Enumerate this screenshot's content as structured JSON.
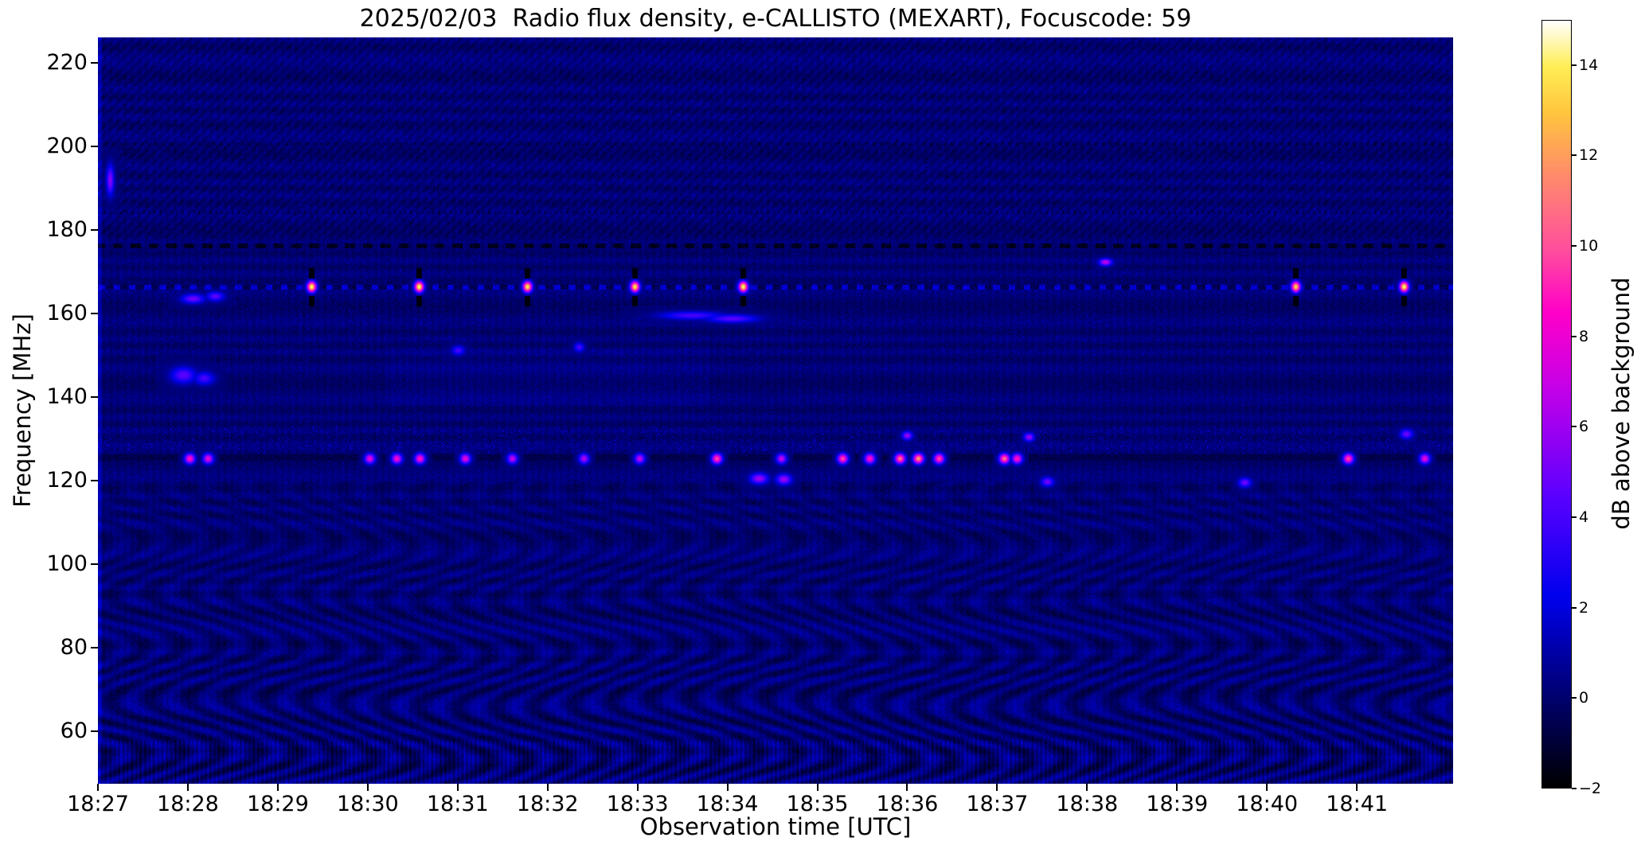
{
  "chart_data": {
    "type": "heatmap",
    "title": "2025/02/03  Radio flux density, e-CALLISTO (MEXART), Focuscode: 59",
    "xlabel": "Observation time [UTC]",
    "ylabel": "Frequency [MHz]",
    "colorbar_label": "dB above background",
    "colormap": "gnuplot2-like (black-blue-magenta-pink-yellow-white)",
    "freq_range": [
      47.5,
      226
    ],
    "time_span_min": 15.07,
    "value_range": [
      -2,
      15
    ],
    "grid": false,
    "yticks": [
      220,
      200,
      180,
      160,
      140,
      120,
      100,
      80,
      60
    ],
    "xticks": [
      {
        "label": "18:27",
        "min": 0
      },
      {
        "label": "18:28",
        "min": 1
      },
      {
        "label": "18:29",
        "min": 2
      },
      {
        "label": "18:30",
        "min": 3
      },
      {
        "label": "18:31",
        "min": 4
      },
      {
        "label": "18:32",
        "min": 5
      },
      {
        "label": "18:33",
        "min": 6
      },
      {
        "label": "18:34",
        "min": 7
      },
      {
        "label": "18:35",
        "min": 8
      },
      {
        "label": "18:36",
        "min": 9
      },
      {
        "label": "18:37",
        "min": 10
      },
      {
        "label": "18:38",
        "min": 11
      },
      {
        "label": "18:39",
        "min": 12
      },
      {
        "label": "18:40",
        "min": 13
      },
      {
        "label": "18:41",
        "min": 14
      }
    ],
    "colorbar_ticks": [
      {
        "v": 14,
        "label": "14"
      },
      {
        "v": 12,
        "label": "12"
      },
      {
        "v": 10,
        "label": "10"
      },
      {
        "v": 8,
        "label": "8"
      },
      {
        "v": 6,
        "label": "6"
      },
      {
        "v": 4,
        "label": "4"
      },
      {
        "v": 2,
        "label": "2"
      },
      {
        "v": 0,
        "label": "0"
      },
      {
        "v": -2,
        "label": "−2"
      }
    ],
    "colormap_stops": [
      {
        "t": 0.0,
        "color": "#000000"
      },
      {
        "t": 0.12,
        "color": "#000070"
      },
      {
        "t": 0.25,
        "color": "#0000ee"
      },
      {
        "t": 0.38,
        "color": "#5a00ff"
      },
      {
        "t": 0.52,
        "color": "#c400e8"
      },
      {
        "t": 0.62,
        "color": "#ff00c8"
      },
      {
        "t": 0.7,
        "color": "#ff4d9e"
      },
      {
        "t": 0.8,
        "color": "#ff8c69"
      },
      {
        "t": 0.88,
        "color": "#ffc53e"
      },
      {
        "t": 0.94,
        "color": "#ffee55"
      },
      {
        "t": 1.0,
        "color": "#ffffff"
      }
    ],
    "background_level_db": 0.3,
    "emission_lines": [
      {
        "freq": 166.4,
        "desc": "dashed carrier with periodic bright white bursts"
      },
      {
        "freq": 176.2,
        "desc": "dark dashed interference line"
      },
      {
        "freq": 125.6,
        "desc": "dark interference line with pink/orange bursts"
      }
    ],
    "bursts": [
      {
        "t": 2.37,
        "f": 166.4,
        "db": 14.5,
        "wt": 0.035,
        "wf": 0.9
      },
      {
        "t": 3.57,
        "f": 166.4,
        "db": 14.5,
        "wt": 0.035,
        "wf": 0.9
      },
      {
        "t": 4.77,
        "f": 166.4,
        "db": 14.0,
        "wt": 0.035,
        "wf": 0.9
      },
      {
        "t": 5.97,
        "f": 166.4,
        "db": 14.0,
        "wt": 0.035,
        "wf": 0.9
      },
      {
        "t": 7.17,
        "f": 166.4,
        "db": 14.5,
        "wt": 0.035,
        "wf": 0.9
      },
      {
        "t": 13.32,
        "f": 166.4,
        "db": 13.5,
        "wt": 0.035,
        "wf": 0.9
      },
      {
        "t": 14.52,
        "f": 166.4,
        "db": 14.5,
        "wt": 0.035,
        "wf": 0.9
      },
      {
        "t": 0.13,
        "f": 192.0,
        "db": 5.5,
        "wt": 0.03,
        "wf": 2.5
      },
      {
        "t": 1.05,
        "f": 163.6,
        "db": 5.0,
        "wt": 0.09,
        "wf": 0.8
      },
      {
        "t": 1.3,
        "f": 164.2,
        "db": 4.5,
        "wt": 0.07,
        "wf": 0.8
      },
      {
        "t": 0.95,
        "f": 145.4,
        "db": 4.5,
        "wt": 0.1,
        "wf": 1.4
      },
      {
        "t": 1.18,
        "f": 144.6,
        "db": 4.0,
        "wt": 0.08,
        "wf": 1.1
      },
      {
        "t": 11.2,
        "f": 172.3,
        "db": 7.0,
        "wt": 0.05,
        "wf": 0.6
      },
      {
        "t": 6.6,
        "f": 159.6,
        "db": 4.0,
        "wt": 0.25,
        "wf": 0.7
      },
      {
        "t": 7.05,
        "f": 158.8,
        "db": 4.5,
        "wt": 0.2,
        "wf": 0.7
      },
      {
        "t": 4.0,
        "f": 151.2,
        "db": 4.0,
        "wt": 0.05,
        "wf": 0.8
      },
      {
        "t": 5.35,
        "f": 152.0,
        "db": 4.0,
        "wt": 0.04,
        "wf": 0.8
      },
      {
        "t": 1.02,
        "f": 125.3,
        "db": 9.0
      },
      {
        "t": 1.22,
        "f": 125.3,
        "db": 8.0
      },
      {
        "t": 3.02,
        "f": 125.3,
        "db": 8.0
      },
      {
        "t": 3.32,
        "f": 125.3,
        "db": 8.5
      },
      {
        "t": 3.58,
        "f": 125.3,
        "db": 9.0
      },
      {
        "t": 4.08,
        "f": 125.3,
        "db": 8.0
      },
      {
        "t": 4.6,
        "f": 125.3,
        "db": 7.0
      },
      {
        "t": 5.4,
        "f": 125.3,
        "db": 6.5
      },
      {
        "t": 6.02,
        "f": 125.3,
        "db": 7.0
      },
      {
        "t": 6.88,
        "f": 125.3,
        "db": 10.0
      },
      {
        "t": 7.6,
        "f": 125.3,
        "db": 7.0
      },
      {
        "t": 8.28,
        "f": 125.3,
        "db": 10.0
      },
      {
        "t": 8.58,
        "f": 125.3,
        "db": 9.0
      },
      {
        "t": 8.92,
        "f": 125.3,
        "db": 11.0
      },
      {
        "t": 9.12,
        "f": 125.3,
        "db": 12.0
      },
      {
        "t": 9.35,
        "f": 125.3,
        "db": 10.0
      },
      {
        "t": 10.08,
        "f": 125.3,
        "db": 11.0
      },
      {
        "t": 10.22,
        "f": 125.3,
        "db": 9.0
      },
      {
        "t": 13.9,
        "f": 125.3,
        "db": 10.0
      },
      {
        "t": 14.75,
        "f": 125.3,
        "db": 8.0
      },
      {
        "t": 7.35,
        "f": 120.6,
        "db": 6.0,
        "wt": 0.07,
        "wf": 0.9
      },
      {
        "t": 7.62,
        "f": 120.4,
        "db": 6.0,
        "wt": 0.06,
        "wf": 0.9
      },
      {
        "t": 10.55,
        "f": 119.8,
        "db": 5.0,
        "wt": 0.05,
        "wf": 0.8
      },
      {
        "t": 12.75,
        "f": 119.6,
        "db": 5.0,
        "wt": 0.05,
        "wf": 0.8
      },
      {
        "t": 9.0,
        "f": 130.8,
        "db": 6.0,
        "wt": 0.04,
        "wf": 0.7
      },
      {
        "t": 10.35,
        "f": 130.5,
        "db": 6.0,
        "wt": 0.04,
        "wf": 0.7
      },
      {
        "t": 14.55,
        "f": 131.2,
        "db": 5.0,
        "wt": 0.05,
        "wf": 0.8
      }
    ]
  }
}
